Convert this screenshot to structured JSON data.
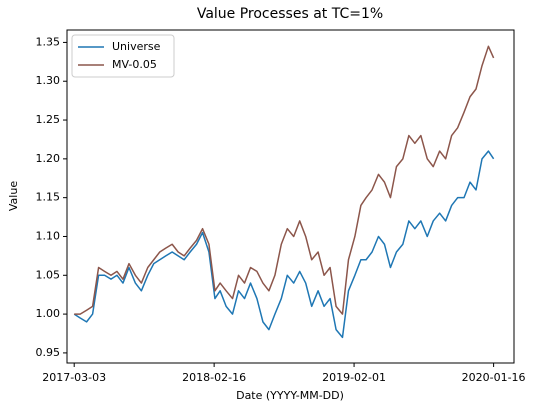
{
  "chart_data": {
    "type": "line",
    "title": "Value Processes at TC=1%",
    "x_label": "Date (YYYY-MM-DD)",
    "y_label": "Value",
    "x": [
      "2017-03-03",
      "2017-03-18",
      "2017-04-03",
      "2017-04-18",
      "2017-05-03",
      "2017-05-18",
      "2017-06-03",
      "2017-06-18",
      "2017-07-03",
      "2017-07-18",
      "2017-08-03",
      "2017-08-18",
      "2017-09-03",
      "2017-09-18",
      "2017-10-03",
      "2017-10-18",
      "2017-11-03",
      "2017-11-18",
      "2017-12-03",
      "2017-12-18",
      "2018-01-03",
      "2018-01-18",
      "2018-02-03",
      "2018-02-18",
      "2018-03-03",
      "2018-03-18",
      "2018-04-03",
      "2018-04-18",
      "2018-05-03",
      "2018-05-18",
      "2018-06-03",
      "2018-06-18",
      "2018-07-03",
      "2018-07-18",
      "2018-08-03",
      "2018-08-18",
      "2018-09-03",
      "2018-09-18",
      "2018-10-03",
      "2018-10-18",
      "2018-11-03",
      "2018-11-18",
      "2018-12-03",
      "2018-12-18",
      "2019-01-03",
      "2019-01-18",
      "2019-02-03",
      "2019-02-18",
      "2019-03-03",
      "2019-03-18",
      "2019-04-03",
      "2019-04-18",
      "2019-05-03",
      "2019-05-18",
      "2019-06-03",
      "2019-06-18",
      "2019-07-03",
      "2019-07-18",
      "2019-08-03",
      "2019-08-18",
      "2019-09-03",
      "2019-09-18",
      "2019-10-03",
      "2019-10-18",
      "2019-11-03",
      "2019-11-18",
      "2019-12-03",
      "2019-12-18",
      "2020-01-03",
      "2020-01-16"
    ],
    "series": [
      {
        "name": "Universe",
        "color": "#1f77b4",
        "values": [
          1.0,
          0.995,
          0.99,
          1.0,
          1.05,
          1.05,
          1.045,
          1.05,
          1.04,
          1.06,
          1.04,
          1.03,
          1.05,
          1.065,
          1.07,
          1.075,
          1.08,
          1.075,
          1.07,
          1.08,
          1.09,
          1.105,
          1.08,
          1.02,
          1.03,
          1.01,
          1.0,
          1.03,
          1.02,
          1.04,
          1.02,
          0.99,
          0.98,
          1.0,
          1.02,
          1.05,
          1.04,
          1.055,
          1.04,
          1.01,
          1.03,
          1.01,
          1.02,
          0.98,
          0.97,
          1.03,
          1.05,
          1.07,
          1.07,
          1.08,
          1.1,
          1.09,
          1.06,
          1.08,
          1.09,
          1.12,
          1.11,
          1.12,
          1.1,
          1.12,
          1.13,
          1.12,
          1.14,
          1.15,
          1.15,
          1.17,
          1.16,
          1.2,
          1.21,
          1.2
        ]
      },
      {
        "name": "MV-0.05",
        "color": "#8c564b",
        "values": [
          1.0,
          1.0,
          1.005,
          1.01,
          1.06,
          1.055,
          1.05,
          1.055,
          1.045,
          1.065,
          1.05,
          1.04,
          1.06,
          1.07,
          1.08,
          1.085,
          1.09,
          1.08,
          1.075,
          1.085,
          1.095,
          1.11,
          1.09,
          1.03,
          1.04,
          1.03,
          1.02,
          1.05,
          1.04,
          1.06,
          1.055,
          1.04,
          1.03,
          1.05,
          1.09,
          1.11,
          1.1,
          1.12,
          1.1,
          1.07,
          1.08,
          1.05,
          1.06,
          1.01,
          1.0,
          1.07,
          1.1,
          1.14,
          1.15,
          1.16,
          1.18,
          1.17,
          1.15,
          1.19,
          1.2,
          1.23,
          1.22,
          1.23,
          1.2,
          1.19,
          1.21,
          1.2,
          1.23,
          1.24,
          1.26,
          1.28,
          1.29,
          1.32,
          1.345,
          1.33
        ]
      }
    ],
    "xlim": [
      "2017-02-13",
      "2020-03-07"
    ],
    "xticks": [
      "2017-03-03",
      "2018-02-16",
      "2019-02-01",
      "2020-01-16"
    ],
    "ylim": [
      0.937,
      1.366
    ],
    "yticks": [
      0.95,
      {
        "value": 1.0,
        "label": "1.00"
      },
      1.05,
      {
        "value": 1.1,
        "label": "1.10"
      },
      1.15,
      {
        "value": 1.2,
        "label": "1.20"
      },
      1.25,
      {
        "value": 1.3,
        "label": "1.30"
      },
      1.35
    ],
    "legend": "upper left",
    "grid": false
  }
}
